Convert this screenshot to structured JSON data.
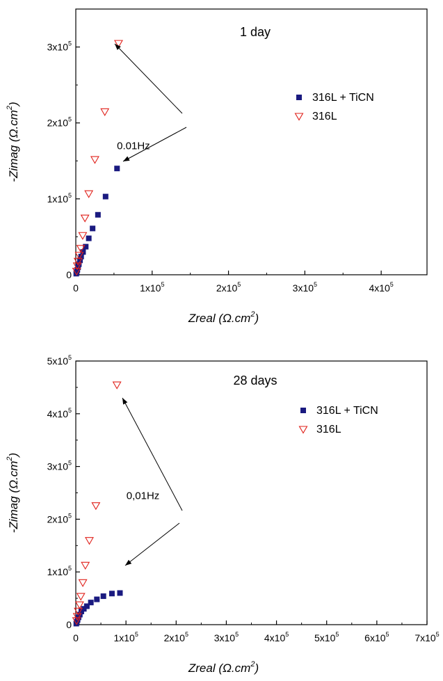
{
  "chart_data": [
    {
      "type": "scatter",
      "title": "1 day",
      "xlabel": "Zreal (Ω.cm",
      "ylabel": "-Zimag (Ω.cm",
      "label_exponent": "2",
      "label_close": ")",
      "xlim": [
        0,
        460000
      ],
      "ylim": [
        0,
        350000
      ],
      "xticks": [
        {
          "value": 0,
          "mantissa": "0",
          "exp": ""
        },
        {
          "value": 100000,
          "mantissa": "1x10",
          "exp": "5"
        },
        {
          "value": 200000,
          "mantissa": "2x10",
          "exp": "5"
        },
        {
          "value": 300000,
          "mantissa": "3x10",
          "exp": "5"
        },
        {
          "value": 400000,
          "mantissa": "4x10",
          "exp": "5"
        }
      ],
      "yticks": [
        {
          "value": 0,
          "mantissa": "0",
          "exp": ""
        },
        {
          "value": 100000,
          "mantissa": "1x10",
          "exp": "5"
        },
        {
          "value": 200000,
          "mantissa": "2x10",
          "exp": "5"
        },
        {
          "value": 300000,
          "mantissa": "3x10",
          "exp": "5"
        }
      ],
      "grid": false,
      "legend_position": "top-right",
      "series": [
        {
          "name": "316L + TiCN",
          "marker": "square",
          "color": "#1a1a80",
          "points": [
            [
              600,
              1500
            ],
            [
              1200,
              3500
            ],
            [
              2000,
              6500
            ],
            [
              3000,
              10000
            ],
            [
              4000,
              14000
            ],
            [
              5500,
              19000
            ],
            [
              7000,
              24000
            ],
            [
              9500,
              30000
            ],
            [
              13000,
              37000
            ],
            [
              17000,
              48000
            ],
            [
              22000,
              61000
            ],
            [
              29000,
              79000
            ],
            [
              39000,
              103000
            ],
            [
              54000,
              140000
            ]
          ]
        },
        {
          "name": "316L",
          "marker": "triangle-down",
          "color": "#e0201a",
          "points": [
            [
              1000,
              5000
            ],
            [
              2000,
              12000
            ],
            [
              3000,
              18000
            ],
            [
              4500,
              26000
            ],
            [
              6500,
              35000
            ],
            [
              9000,
              52000
            ],
            [
              12000,
              75000
            ],
            [
              17000,
              107000
            ],
            [
              25000,
              152000
            ],
            [
              38000,
              215000
            ],
            [
              56000,
              305000
            ]
          ]
        }
      ],
      "annotations": [
        {
          "text": "0.01Hz",
          "x": 50000,
          "y": 170000
        }
      ]
    },
    {
      "type": "scatter",
      "title": "28 days",
      "xlabel": "Zreal (Ω.cm",
      "ylabel": "-Zimag (Ω.cm",
      "label_exponent": "2",
      "label_close": ")",
      "xlim": [
        0,
        700000
      ],
      "ylim": [
        0,
        500000
      ],
      "xticks": [
        {
          "value": 0,
          "mantissa": "0",
          "exp": ""
        },
        {
          "value": 100000,
          "mantissa": "1x10",
          "exp": "5"
        },
        {
          "value": 200000,
          "mantissa": "2x10",
          "exp": "5"
        },
        {
          "value": 300000,
          "mantissa": "3x10",
          "exp": "5"
        },
        {
          "value": 400000,
          "mantissa": "4x10",
          "exp": "5"
        },
        {
          "value": 500000,
          "mantissa": "5x10",
          "exp": "5"
        },
        {
          "value": 600000,
          "mantissa": "6x10",
          "exp": "5"
        },
        {
          "value": 700000,
          "mantissa": "7x10",
          "exp": "5"
        }
      ],
      "yticks": [
        {
          "value": 0,
          "mantissa": "0",
          "exp": ""
        },
        {
          "value": 100000,
          "mantissa": "1x10",
          "exp": "5"
        },
        {
          "value": 200000,
          "mantissa": "2x10",
          "exp": "5"
        },
        {
          "value": 300000,
          "mantissa": "3x10",
          "exp": "5"
        },
        {
          "value": 400000,
          "mantissa": "4x10",
          "exp": "5"
        },
        {
          "value": 500000,
          "mantissa": "5x10",
          "exp": "5"
        }
      ],
      "grid": false,
      "legend_position": "top-right",
      "series": [
        {
          "name": "316L + TiCN",
          "marker": "square",
          "color": "#1a1a80",
          "points": [
            [
              1000,
              2000
            ],
            [
              2000,
              5000
            ],
            [
              3500,
              9000
            ],
            [
              5500,
              14000
            ],
            [
              8000,
              19000
            ],
            [
              11000,
              25000
            ],
            [
              16000,
              30000
            ],
            [
              22000,
              35000
            ],
            [
              30000,
              42000
            ],
            [
              42000,
              48000
            ],
            [
              55000,
              54000
            ],
            [
              72000,
              59000
            ],
            [
              88000,
              60000
            ]
          ]
        },
        {
          "name": "316L",
          "marker": "triangle-down",
          "color": "#e0201a",
          "points": [
            [
              1500,
              8000
            ],
            [
              3000,
              16000
            ],
            [
              5000,
              26000
            ],
            [
              7500,
              38000
            ],
            [
              10000,
              54000
            ],
            [
              14000,
              80000
            ],
            [
              19000,
              113000
            ],
            [
              27000,
              160000
            ],
            [
              40000,
              226000
            ],
            [
              82000,
              455000
            ]
          ]
        }
      ],
      "annotations": [
        {
          "text": "0,01Hz",
          "x": 95000,
          "y": 245000
        }
      ]
    }
  ]
}
